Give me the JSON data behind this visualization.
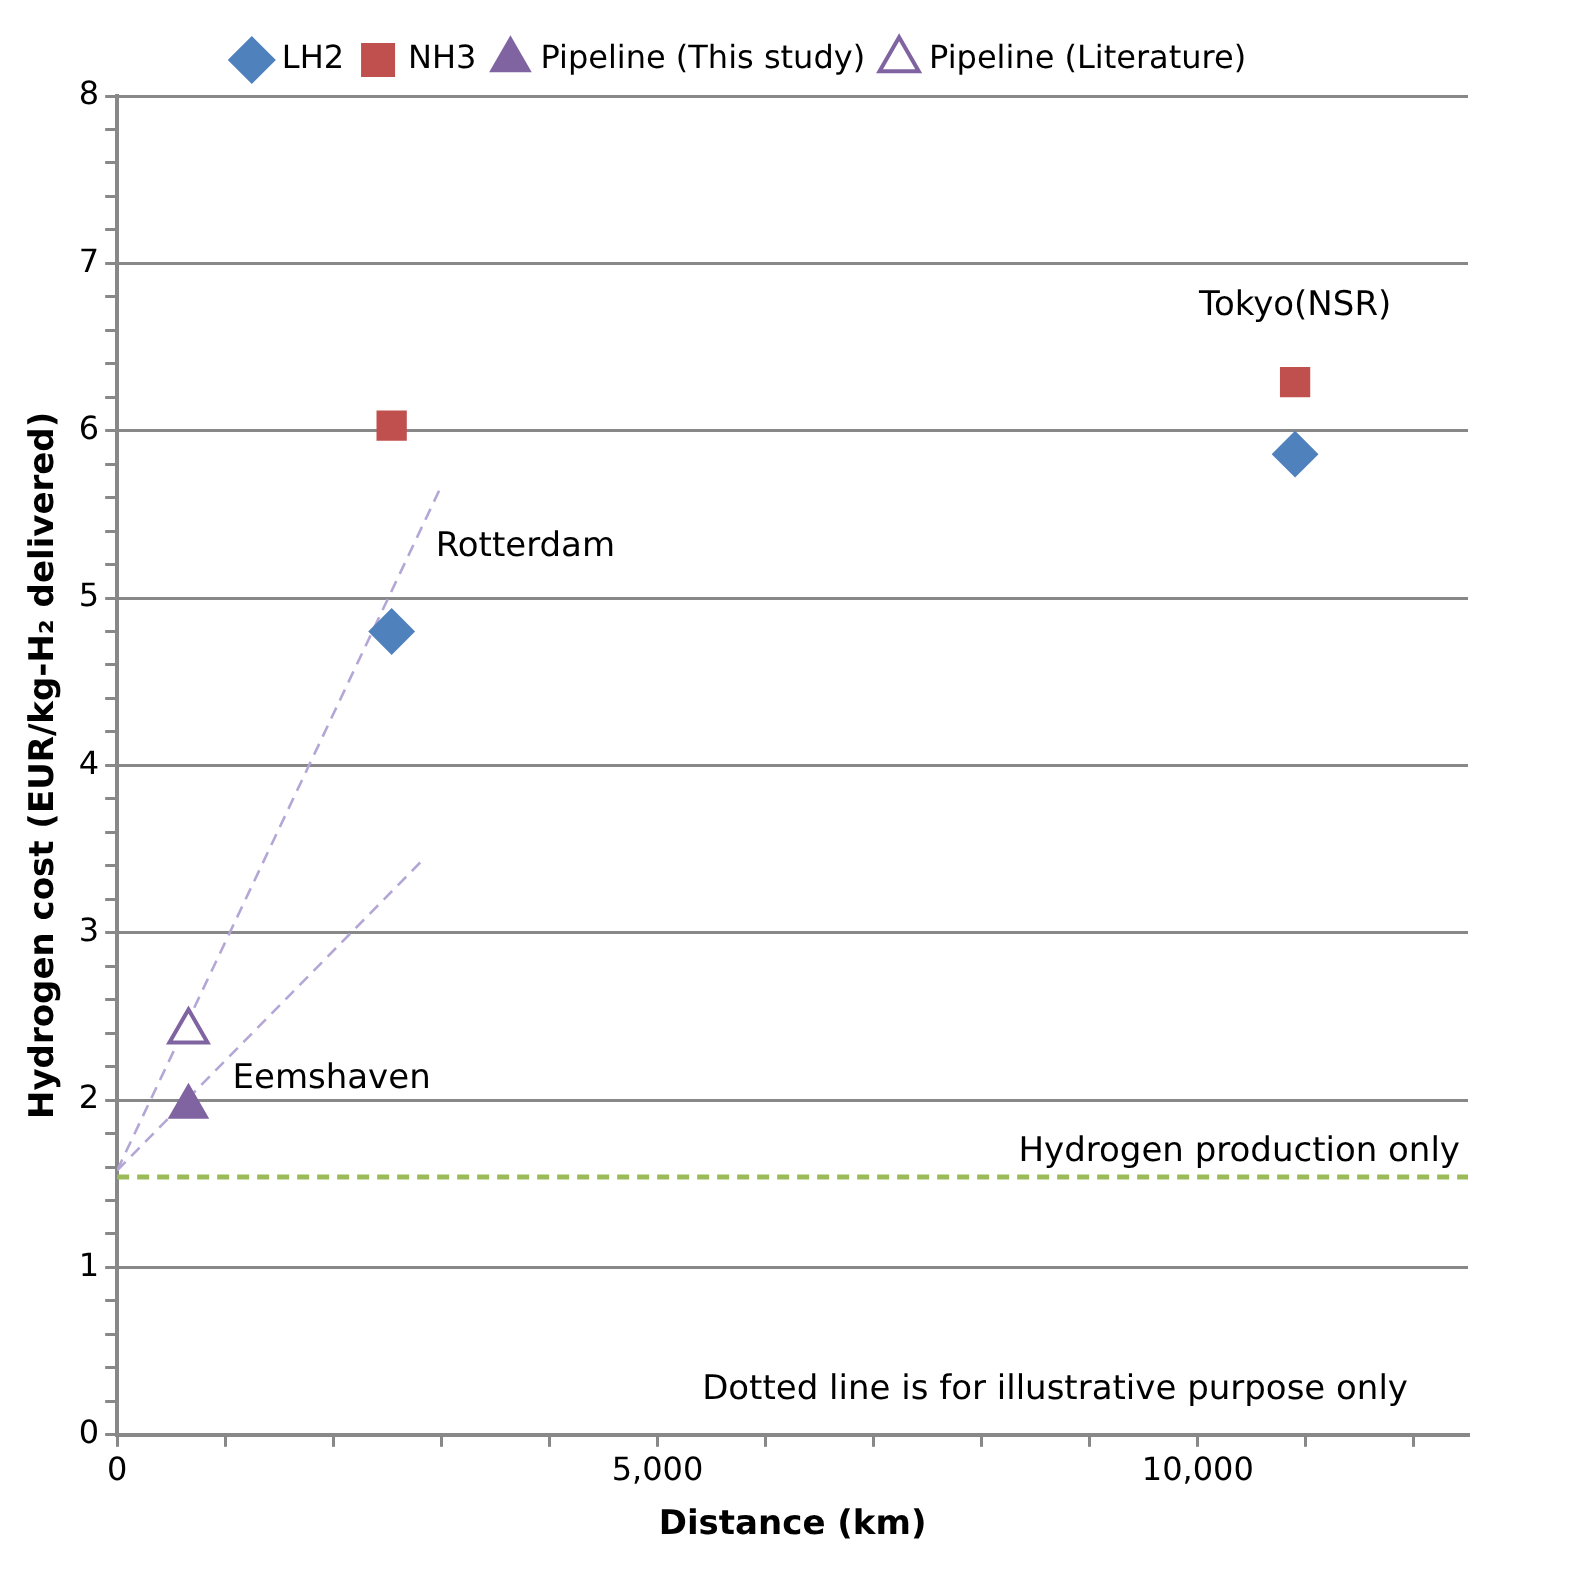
{
  "chart_data": {
    "type": "scatter",
    "xlabel": "Distance (km)",
    "ylabel": "Hydrogen cost (EUR/kg-H₂ delivered)",
    "xlim": [
      0,
      12500
    ],
    "xticks": [
      0,
      {
        "value": 1000,
        "label": null
      },
      {
        "value": 2000,
        "label": null
      },
      {
        "value": 3000,
        "label": null
      },
      {
        "value": 4000,
        "label": null
      },
      {
        "value": 5000,
        "label": "5,000"
      },
      {
        "value": 6000,
        "label": null
      },
      {
        "value": 7000,
        "label": null
      },
      {
        "value": 8000,
        "label": null
      },
      {
        "value": 9000,
        "label": null
      },
      {
        "value": 10000,
        "label": "10,000"
      },
      {
        "value": 11000,
        "label": null
      },
      {
        "value": 12000,
        "label": null
      }
    ],
    "ylim": [
      0,
      8
    ],
    "yticks": [
      0,
      {
        "value": 0.2,
        "label": null
      },
      {
        "value": 0.4,
        "label": null
      },
      {
        "value": 0.6,
        "label": null
      },
      {
        "value": 0.8,
        "label": null
      },
      1,
      {
        "value": 1.2,
        "label": null
      },
      {
        "value": 1.4,
        "label": null
      },
      {
        "value": 1.6,
        "label": null
      },
      {
        "value": 1.8,
        "label": null
      },
      2,
      {
        "value": 2.2,
        "label": null
      },
      {
        "value": 2.4,
        "label": null
      },
      {
        "value": 2.6,
        "label": null
      },
      {
        "value": 2.8,
        "label": null
      },
      3,
      {
        "value": 3.2,
        "label": null
      },
      {
        "value": 3.4,
        "label": null
      },
      {
        "value": 3.6,
        "label": null
      },
      {
        "value": 3.8,
        "label": null
      },
      4,
      {
        "value": 4.2,
        "label": null
      },
      {
        "value": 4.4,
        "label": null
      },
      {
        "value": 4.6,
        "label": null
      },
      {
        "value": 4.8,
        "label": null
      },
      5,
      {
        "value": 5.2,
        "label": null
      },
      {
        "value": 5.4,
        "label": null
      },
      {
        "value": 5.6,
        "label": null
      },
      {
        "value": 5.8,
        "label": null
      },
      6,
      {
        "value": 6.2,
        "label": null
      },
      {
        "value": 6.4,
        "label": null
      },
      {
        "value": 6.6,
        "label": null
      },
      {
        "value": 6.8,
        "label": null
      },
      7,
      {
        "value": 7.2,
        "label": null
      },
      {
        "value": 7.4,
        "label": null
      },
      {
        "value": 7.6,
        "label": null
      },
      {
        "value": 7.8,
        "label": null
      },
      8
    ],
    "grid": "y",
    "legend": "top",
    "series": [
      {
        "name": "LH2",
        "color": "#4f81bd",
        "marker": "diamond",
        "x": [
          2540,
          10900
        ],
        "values": [
          4.8,
          5.86
        ]
      },
      {
        "name": "NH3",
        "color": "#c0504d",
        "marker": "square",
        "x": [
          2540,
          10900
        ],
        "values": [
          6.03,
          6.29
        ]
      },
      {
        "name": "Pipeline (This study)",
        "color": "#8064a2",
        "marker": "triangle",
        "x": [
          660
        ],
        "values": [
          1.96
        ]
      },
      {
        "name": "Pipeline (Literature)",
        "color": "#8064a2",
        "marker": "triangle",
        "x": [
          660
        ],
        "values": [
          2.41
        ]
      },
      {
        "type": "line",
        "color": "#b4a7d6",
        "line_style": "dashed",
        "marker": "none",
        "x": [
          0,
          3000
        ],
        "values": [
          1.58,
          5.67
        ]
      },
      {
        "type": "line",
        "color": "#b4a7d6",
        "line_style": "dashed",
        "marker": "none",
        "x": [
          0,
          2820
        ],
        "values": [
          1.58,
          3.43
        ]
      }
    ],
    "ref_lines": [
      {
        "axis": "y",
        "value": 1.54,
        "label": "Hydrogen production only",
        "color": "#9bbb59",
        "line_style": "dashed"
      }
    ],
    "annotations": [
      {
        "text": "Rotterdam",
        "x": 2540,
        "y": 4.8
      },
      {
        "text": "Eemshaven",
        "x": 660,
        "y": 1.96
      },
      {
        "text": "Tokyo(NSR)",
        "x": 10900,
        "y": 6.29
      },
      "Dotted line is for illustrative purpose only"
    ]
  }
}
